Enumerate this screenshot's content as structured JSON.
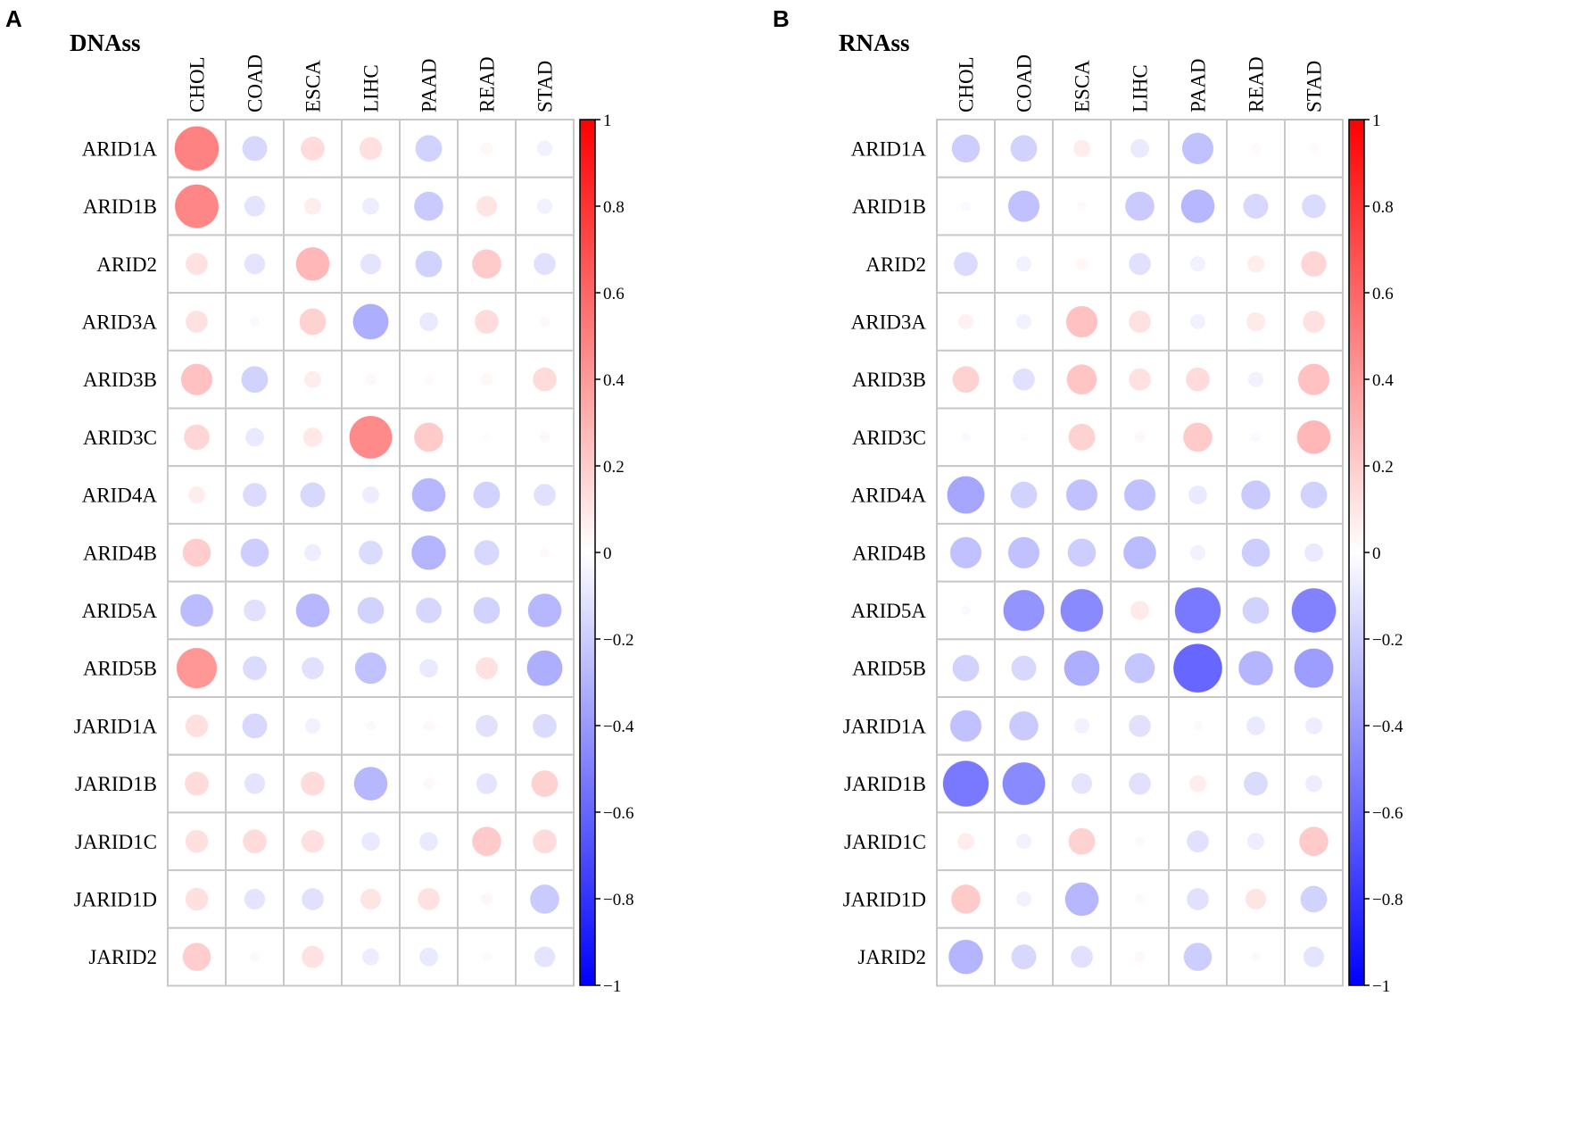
{
  "chart_data": [
    {
      "type": "heatmap",
      "panel_letter": "A",
      "title": "DNAss",
      "columns": [
        "CHOL",
        "COAD",
        "ESCA",
        "LIHC",
        "PAAD",
        "READ",
        "STAD"
      ],
      "rows": [
        "ARID1A",
        "ARID1B",
        "ARID2",
        "ARID3A",
        "ARID3B",
        "ARID3C",
        "ARID4A",
        "ARID4B",
        "ARID5A",
        "ARID5B",
        "JARID1A",
        "JARID1B",
        "JARID1C",
        "JARID1D",
        "JARID2"
      ],
      "values": [
        [
          0.7,
          -0.22,
          0.2,
          0.18,
          -0.25,
          0.05,
          -0.08
        ],
        [
          0.68,
          -0.15,
          0.1,
          -0.1,
          -0.3,
          0.15,
          -0.08
        ],
        [
          0.17,
          -0.15,
          0.4,
          -0.15,
          -0.25,
          0.3,
          -0.17
        ],
        [
          0.17,
          -0.03,
          0.25,
          -0.45,
          -0.12,
          0.2,
          0.04
        ],
        [
          0.35,
          -0.25,
          0.1,
          0.04,
          0.03,
          0.05,
          0.2
        ],
        [
          0.23,
          -0.12,
          0.13,
          0.65,
          0.3,
          0.02,
          0.04
        ],
        [
          0.1,
          -0.2,
          -0.22,
          -0.1,
          -0.4,
          -0.25,
          -0.17
        ],
        [
          0.28,
          -0.28,
          -0.1,
          -0.2,
          -0.42,
          -0.22,
          0.03
        ],
        [
          -0.38,
          -0.17,
          -0.4,
          -0.25,
          -0.23,
          -0.25,
          -0.4
        ],
        [
          0.58,
          -0.2,
          -0.17,
          -0.35,
          -0.12,
          0.17,
          -0.45
        ],
        [
          0.18,
          -0.22,
          -0.08,
          -0.03,
          0.04,
          -0.17,
          -0.2
        ],
        [
          0.2,
          -0.15,
          0.2,
          -0.4,
          0.04,
          -0.15,
          0.25
        ],
        [
          0.18,
          0.2,
          0.18,
          -0.12,
          -0.12,
          0.3,
          0.2
        ],
        [
          0.18,
          -0.15,
          -0.17,
          0.15,
          0.17,
          0.05,
          -0.3
        ],
        [
          0.28,
          -0.03,
          0.17,
          -0.1,
          -0.12,
          0.03,
          -0.15
        ]
      ],
      "legend": {
        "range": [
          -1,
          1
        ],
        "ticks": [
          1,
          0.8,
          0.6,
          0.4,
          0.2,
          0,
          -0.2,
          -0.4,
          -0.6,
          -0.8,
          -1
        ],
        "tick_labels": [
          "1",
          "0.8",
          "0.6",
          "0.4",
          "0.2",
          "0",
          "−0.2",
          "−0.4",
          "−0.6",
          "−0.8",
          "−1"
        ],
        "placement": "right"
      },
      "colors": {
        "positive": "#ff0000",
        "neutral": "#ffffff",
        "negative": "#0000ff"
      }
    },
    {
      "type": "heatmap",
      "panel_letter": "B",
      "title": "RNAss",
      "columns": [
        "CHOL",
        "COAD",
        "ESCA",
        "LIHC",
        "PAAD",
        "READ",
        "STAD"
      ],
      "rows": [
        "ARID1A",
        "ARID1B",
        "ARID2",
        "ARID3A",
        "ARID3B",
        "ARID3C",
        "ARID4A",
        "ARID4B",
        "ARID5A",
        "ARID5B",
        "JARID1A",
        "JARID1B",
        "JARID1C",
        "JARID1D",
        "JARID2"
      ],
      "values": [
        [
          -0.28,
          -0.25,
          0.1,
          -0.12,
          -0.35,
          0.03,
          0.03
        ],
        [
          -0.03,
          -0.35,
          0.03,
          -0.3,
          -0.4,
          -0.22,
          -0.2
        ],
        [
          -0.2,
          -0.08,
          0.05,
          -0.17,
          -0.08,
          0.1,
          0.23
        ],
        [
          0.08,
          -0.08,
          0.35,
          0.17,
          -0.08,
          0.12,
          0.17
        ],
        [
          0.25,
          -0.17,
          0.32,
          0.17,
          0.2,
          -0.08,
          0.35
        ],
        [
          -0.03,
          0.02,
          0.25,
          0.04,
          0.3,
          -0.03,
          0.4
        ],
        [
          -0.5,
          -0.25,
          -0.35,
          -0.35,
          -0.12,
          -0.3,
          -0.25
        ],
        [
          -0.35,
          -0.35,
          -0.28,
          -0.38,
          -0.08,
          -0.28,
          -0.12
        ],
        [
          -0.03,
          -0.6,
          -0.65,
          0.12,
          -0.75,
          -0.25,
          -0.7
        ],
        [
          -0.25,
          -0.22,
          -0.45,
          -0.32,
          -0.85,
          -0.42,
          -0.55
        ],
        [
          -0.35,
          -0.3,
          -0.08,
          -0.17,
          0.03,
          -0.12,
          -0.1
        ],
        [
          -0.75,
          -0.65,
          -0.15,
          -0.17,
          0.1,
          -0.2,
          -0.1
        ],
        [
          0.1,
          -0.08,
          0.25,
          0.03,
          -0.17,
          -0.1,
          0.3
        ],
        [
          0.3,
          -0.08,
          -0.4,
          0.03,
          -0.17,
          0.15,
          -0.25
        ],
        [
          -0.42,
          -0.22,
          -0.17,
          0.04,
          -0.28,
          0.03,
          -0.15
        ]
      ],
      "legend": {
        "range": [
          -1,
          1
        ],
        "ticks": [
          1,
          0.8,
          0.6,
          0.4,
          0.2,
          0,
          -0.2,
          -0.4,
          -0.6,
          -0.8,
          -1
        ],
        "tick_labels": [
          "1",
          "0.8",
          "0.6",
          "0.4",
          "0.2",
          "0",
          "−0.2",
          "−0.4",
          "−0.6",
          "−0.8",
          "−1"
        ],
        "placement": "right"
      },
      "colors": {
        "positive": "#ff0000",
        "neutral": "#ffffff",
        "negative": "#0000ff"
      }
    }
  ]
}
